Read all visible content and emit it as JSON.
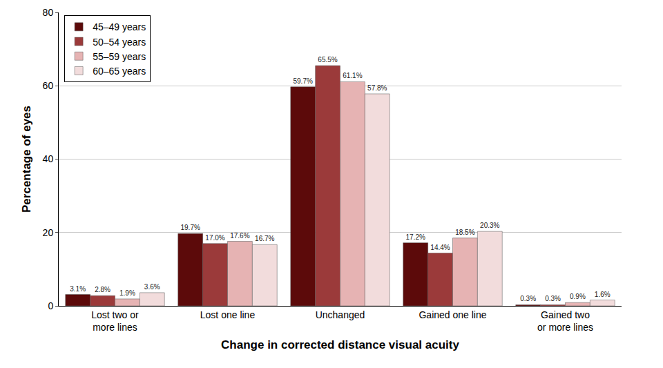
{
  "chart_data": {
    "type": "bar",
    "x_label": "Change in corrected distance visual acuity",
    "y_label": "Percentage of eyes",
    "categories": [
      "Lost two or more lines",
      "Lost one line",
      "Unchanged",
      "Gained one line",
      "Gained two or more lines"
    ],
    "series": [
      {
        "name": "45–49 years",
        "color": "#5c0a0a",
        "values": [
          3.1,
          19.7,
          59.7,
          17.2,
          0.3
        ],
        "value_labels": [
          "3.1%",
          "19.7%",
          "59.7%",
          "17.2%",
          "0.3%"
        ]
      },
      {
        "name": "50–54 years",
        "color": "#9b3a3a",
        "values": [
          2.8,
          17.0,
          65.5,
          14.4,
          0.3
        ],
        "value_labels": [
          "2.8%",
          "17.0%",
          "65.5%",
          "14.4%",
          "0.3%"
        ]
      },
      {
        "name": "55–59 years",
        "color": "#e6b3b3",
        "values": [
          1.9,
          17.6,
          61.1,
          18.5,
          0.9
        ],
        "value_labels": [
          "1.9%",
          "17.6%",
          "61.1%",
          "18.5%",
          "0.9%"
        ]
      },
      {
        "name": "60–65 years",
        "color": "#f2dcdc",
        "values": [
          3.6,
          16.7,
          57.8,
          20.3,
          1.6
        ],
        "value_labels": [
          "3.6%",
          "16.7%",
          "57.8%",
          "20.3%",
          "1.6%"
        ]
      }
    ],
    "ylim": [
      0,
      80
    ],
    "yticks": [
      0,
      20,
      40,
      60,
      80
    ],
    "grid": true,
    "legend": "top-left",
    "data_labels": true
  }
}
